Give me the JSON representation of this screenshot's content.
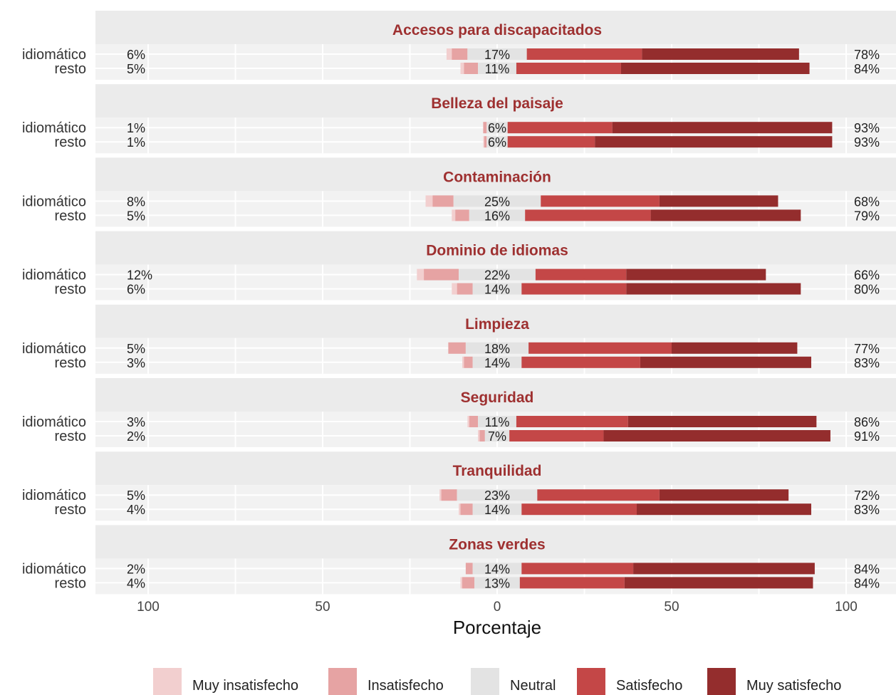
{
  "chart_data": {
    "type": "bar",
    "subtype": "diverging-stacked-likert",
    "xlabel": "Porcentaje",
    "x_ticks": [
      "100",
      "50",
      "0",
      "50",
      "100"
    ],
    "xlim": [
      -100,
      100
    ],
    "legend_position": "bottom",
    "categories_legend": [
      "Muy insatisfecho",
      "Insatisfecho",
      "Neutral",
      "Satisfecho",
      "Muy satisfecho"
    ],
    "colors": {
      "muy_insatisfecho": "#f2cfcf",
      "insatisfecho": "#e6a3a3",
      "neutral": "#e3e3e3",
      "satisfecho": "#c44747",
      "muy_satisfecho": "#942d2d",
      "panel_strip": "#ebebeb",
      "panel_bg": "#f2f2f2",
      "title": "#9e3030"
    },
    "groups": [
      "idiomático",
      "resto"
    ],
    "panels": [
      {
        "title": "Accesos para discapacitados",
        "rows": [
          {
            "group": "idiomático",
            "values": [
              1.5,
              4.5,
              17,
              33,
              45
            ],
            "neg_label": "6%",
            "neutral_label": "17%",
            "pos_label": "78%"
          },
          {
            "group": "resto",
            "values": [
              1,
              4,
              11,
              30,
              54
            ],
            "neg_label": "5%",
            "neutral_label": "11%",
            "pos_label": "84%"
          }
        ]
      },
      {
        "title": "Belleza del paisaje",
        "rows": [
          {
            "group": "idiomático",
            "values": [
              0,
              1,
              6,
              30,
              63
            ],
            "neg_label": "1%",
            "neutral_label": "6%",
            "pos_label": "93%"
          },
          {
            "group": "resto",
            "values": [
              0.3,
              0.7,
              6,
              25,
              68
            ],
            "neg_label": "1%",
            "neutral_label": "6%",
            "pos_label": "93%"
          }
        ]
      },
      {
        "title": "Contaminación",
        "rows": [
          {
            "group": "idiomático",
            "values": [
              2,
              6,
              25,
              34,
              34
            ],
            "neg_label": "8%",
            "neutral_label": "25%",
            "pos_label": "68%"
          },
          {
            "group": "resto",
            "values": [
              1,
              4,
              16,
              36,
              43
            ],
            "neg_label": "5%",
            "neutral_label": "16%",
            "pos_label": "79%"
          }
        ]
      },
      {
        "title": "Dominio de idiomas",
        "rows": [
          {
            "group": "idiomático",
            "values": [
              2,
              10,
              22,
              26,
              40
            ],
            "neg_label": "12%",
            "neutral_label": "22%",
            "pos_label": "66%"
          },
          {
            "group": "resto",
            "values": [
              1.5,
              4.5,
              14,
              30,
              50
            ],
            "neg_label": "6%",
            "neutral_label": "14%",
            "pos_label": "80%"
          }
        ]
      },
      {
        "title": "Limpieza",
        "rows": [
          {
            "group": "idiomático",
            "values": [
              0,
              5,
              18,
              41,
              36
            ],
            "neg_label": "5%",
            "neutral_label": "18%",
            "pos_label": "77%"
          },
          {
            "group": "resto",
            "values": [
              0.5,
              2.5,
              14,
              34,
              49
            ],
            "neg_label": "3%",
            "neutral_label": "14%",
            "pos_label": "83%"
          }
        ]
      },
      {
        "title": "Seguridad",
        "rows": [
          {
            "group": "idiomático",
            "values": [
              0.5,
              2.5,
              11,
              32,
              54
            ],
            "neg_label": "3%",
            "neutral_label": "11%",
            "pos_label": "86%"
          },
          {
            "group": "resto",
            "values": [
              0.5,
              1.5,
              7,
              27,
              65
            ],
            "neg_label": "2%",
            "neutral_label": "7%",
            "pos_label": "91%"
          }
        ]
      },
      {
        "title": "Tranquilidad",
        "rows": [
          {
            "group": "idiomático",
            "values": [
              0.5,
              4.5,
              23,
              35,
              37
            ],
            "neg_label": "5%",
            "neutral_label": "23%",
            "pos_label": "72%"
          },
          {
            "group": "resto",
            "values": [
              0.5,
              3.5,
              14,
              33,
              50
            ],
            "neg_label": "4%",
            "neutral_label": "14%",
            "pos_label": "83%"
          }
        ]
      },
      {
        "title": "Zonas verdes",
        "rows": [
          {
            "group": "idiomático",
            "values": [
              0,
              2,
              14,
              32,
              52
            ],
            "neg_label": "2%",
            "neutral_label": "14%",
            "pos_label": "84%"
          },
          {
            "group": "resto",
            "values": [
              0.5,
              3.5,
              13,
              30,
              54
            ],
            "neg_label": "4%",
            "neutral_label": "13%",
            "pos_label": "84%"
          }
        ]
      }
    ]
  }
}
